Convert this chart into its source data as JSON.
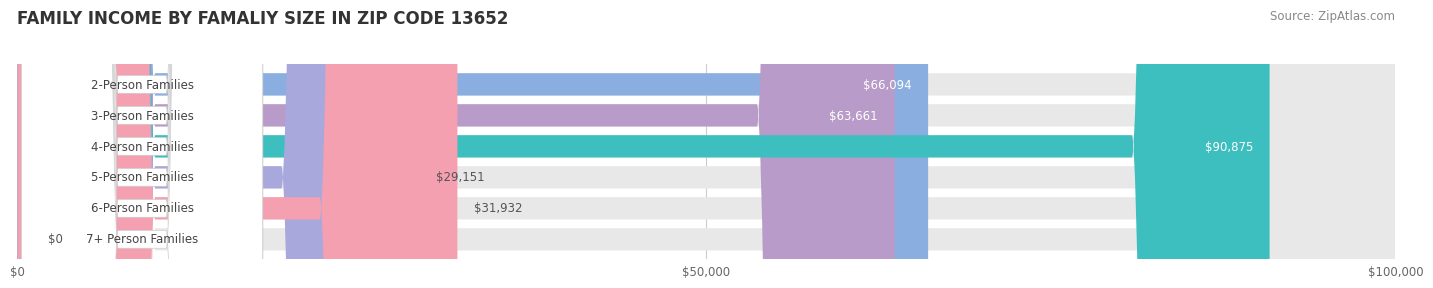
{
  "title": "FAMILY INCOME BY FAMALIY SIZE IN ZIP CODE 13652",
  "source": "Source: ZipAtlas.com",
  "categories": [
    "2-Person Families",
    "3-Person Families",
    "4-Person Families",
    "5-Person Families",
    "6-Person Families",
    "7+ Person Families"
  ],
  "values": [
    66094,
    63661,
    90875,
    29151,
    31932,
    0
  ],
  "bar_colors": [
    "#8aaee0",
    "#b89bc8",
    "#3dbfbf",
    "#a8a8dc",
    "#f4a0b0",
    "#f5d5a8"
  ],
  "bar_bg_color": "#e8e8e8",
  "xlim": [
    0,
    100000
  ],
  "xticks": [
    0,
    50000,
    100000
  ],
  "xticklabels": [
    "$0",
    "$50,000",
    "$100,000"
  ],
  "bar_height": 0.72,
  "title_fontsize": 12,
  "source_fontsize": 8.5,
  "label_fontsize": 8.5,
  "value_fontsize": 8.5,
  "tick_fontsize": 8.5
}
